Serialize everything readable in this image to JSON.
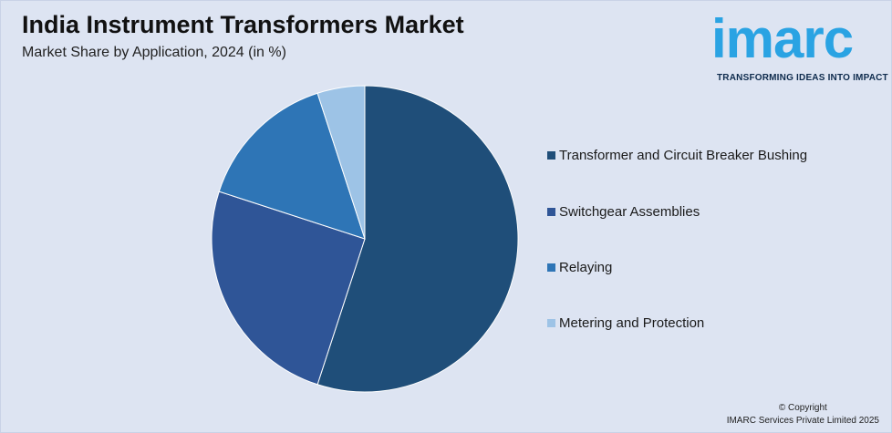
{
  "header": {
    "title": "India Instrument Transformers Market",
    "subtitle": "Market Share by Application, 2024 (in %)"
  },
  "logo": {
    "brand": "imarc",
    "tagline": "TRANSFORMING IDEAS INTO IMPACT",
    "color": "#2aa3e3"
  },
  "footer": {
    "copyright_line1": "© Copyright",
    "copyright_line2": "IMARC Services Private Limited 2025"
  },
  "chart_data": {
    "type": "pie",
    "title": "India Instrument Transformers Market",
    "subtitle": "Market Share by Application, 2024 (in %)",
    "start_angle_deg": 0,
    "direction": "clockwise",
    "legend_position": "right",
    "slices": [
      {
        "label": "Transformer and Circuit Breaker Bushing",
        "value": 55,
        "color": "#1f4e79"
      },
      {
        "label": "Switchgear Assemblies",
        "value": 25,
        "color": "#2f5597"
      },
      {
        "label": "Relaying",
        "value": 15,
        "color": "#2e75b6"
      },
      {
        "label": "Metering and Protection",
        "value": 5,
        "color": "#9dc3e6"
      }
    ]
  }
}
